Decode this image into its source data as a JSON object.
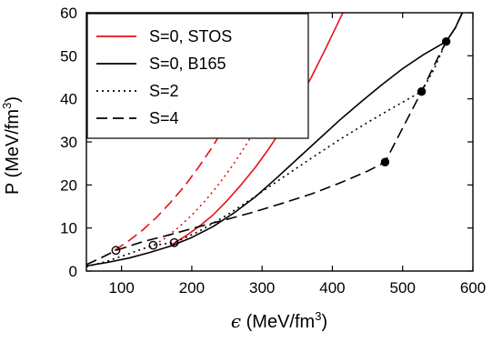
{
  "chart_data": {
    "type": "line",
    "xlabel": {
      "symbol": "ϵ",
      "text": " (MeV/fm",
      "sup": "3",
      "close": ")"
    },
    "ylabel": {
      "text": "P (MeV/fm",
      "sup": "3",
      "close": ")"
    },
    "xlim": [
      50,
      600
    ],
    "ylim": [
      0,
      60
    ],
    "xticks": [
      100,
      200,
      300,
      400,
      500,
      600
    ],
    "yticks": [
      0,
      10,
      20,
      30,
      40,
      50,
      60
    ],
    "xtick_labels": [
      "100",
      "200",
      "300",
      "400",
      "500",
      "600"
    ],
    "ytick_labels": [
      "0",
      "10",
      "20",
      "30",
      "40",
      "50",
      "60"
    ],
    "grid": false,
    "legend_placement": "top-left",
    "legend": [
      {
        "label": "S=0, STOS",
        "color": "#e8101a",
        "dash": "solid"
      },
      {
        "label": "S=0, B165",
        "color": "#000000",
        "dash": "solid"
      },
      {
        "label": "S=2",
        "color": "#000000",
        "dash": "dotted"
      },
      {
        "label": "S=4",
        "color": "#000000",
        "dash": "dashed"
      }
    ],
    "series": [
      {
        "name": "S=0, STOS",
        "color": "#e8101a",
        "dash": "solid",
        "x": [
          170,
          190,
          210,
          230,
          250,
          270,
          290,
          310,
          330,
          350,
          370,
          390,
          415
        ],
        "y": [
          6.0,
          8.0,
          10.3,
          13.0,
          16.3,
          20.0,
          24.0,
          28.5,
          33.5,
          39.0,
          45.0,
          51.5,
          60.0
        ]
      },
      {
        "name": "S=2, STOS",
        "color": "#e8101a",
        "dash": "dotted",
        "x": [
          140,
          160,
          180,
          200,
          220,
          240,
          260,
          280,
          300,
          320,
          340,
          358
        ],
        "y": [
          5.5,
          7.4,
          10.0,
          13.0,
          16.5,
          20.5,
          25.0,
          30.0,
          36.0,
          43.0,
          51.0,
          60.0
        ]
      },
      {
        "name": "S=4, STOS",
        "color": "#e8101a",
        "dash": "dashed",
        "x": [
          90,
          110,
          130,
          150,
          170,
          190,
          210,
          230,
          250,
          270,
          290,
          310,
          325
        ],
        "y": [
          4.8,
          7.0,
          9.5,
          12.5,
          16.0,
          19.8,
          24.2,
          29.0,
          34.5,
          40.5,
          47.5,
          55.0,
          60.0
        ]
      },
      {
        "name": "S=0, B165",
        "color": "#000000",
        "dash": "solid",
        "x": [
          50,
          80,
          110,
          140,
          170,
          200,
          230,
          260,
          290,
          320,
          350,
          380,
          410,
          440,
          470,
          500,
          530,
          562,
          575,
          585
        ],
        "y": [
          1.2,
          2.0,
          3.0,
          4.3,
          5.8,
          7.8,
          10.3,
          13.5,
          17.2,
          21.5,
          26.0,
          30.5,
          35.0,
          39.2,
          43.2,
          47.0,
          50.3,
          53.3,
          56.5,
          60.0
        ]
      },
      {
        "name": "S=2, B165",
        "color": "#000000",
        "dash": "dotted",
        "x": [
          50,
          80,
          110,
          145,
          175,
          210,
          250,
          290,
          330,
          370,
          410,
          450,
          490,
          527,
          545,
          562,
          575,
          585
        ],
        "y": [
          1.0,
          2.3,
          4.0,
          6.0,
          6.6,
          9.2,
          13.0,
          17.3,
          21.8,
          26.2,
          30.5,
          34.5,
          38.3,
          41.7,
          47.0,
          53.3,
          56.5,
          60.0
        ]
      },
      {
        "name": "S=4, B165",
        "color": "#000000",
        "dash": "dashed",
        "x": [
          50,
          70,
          92,
          130,
          170,
          210,
          250,
          290,
          330,
          370,
          410,
          450,
          475,
          500,
          527,
          550,
          562,
          575,
          585
        ],
        "y": [
          1.5,
          3.0,
          4.8,
          6.8,
          8.5,
          10.3,
          12.0,
          13.8,
          15.8,
          17.9,
          20.4,
          23.2,
          25.3,
          33.2,
          41.7,
          49.5,
          53.3,
          56.5,
          60.0
        ]
      }
    ],
    "markers": [
      {
        "x": 92,
        "y": 4.8,
        "style": "open"
      },
      {
        "x": 145,
        "y": 6.0,
        "style": "open"
      },
      {
        "x": 175,
        "y": 6.6,
        "style": "open"
      },
      {
        "x": 475,
        "y": 25.3,
        "style": "filled"
      },
      {
        "x": 527,
        "y": 41.7,
        "style": "filled"
      },
      {
        "x": 562,
        "y": 53.3,
        "style": "filled"
      }
    ]
  }
}
